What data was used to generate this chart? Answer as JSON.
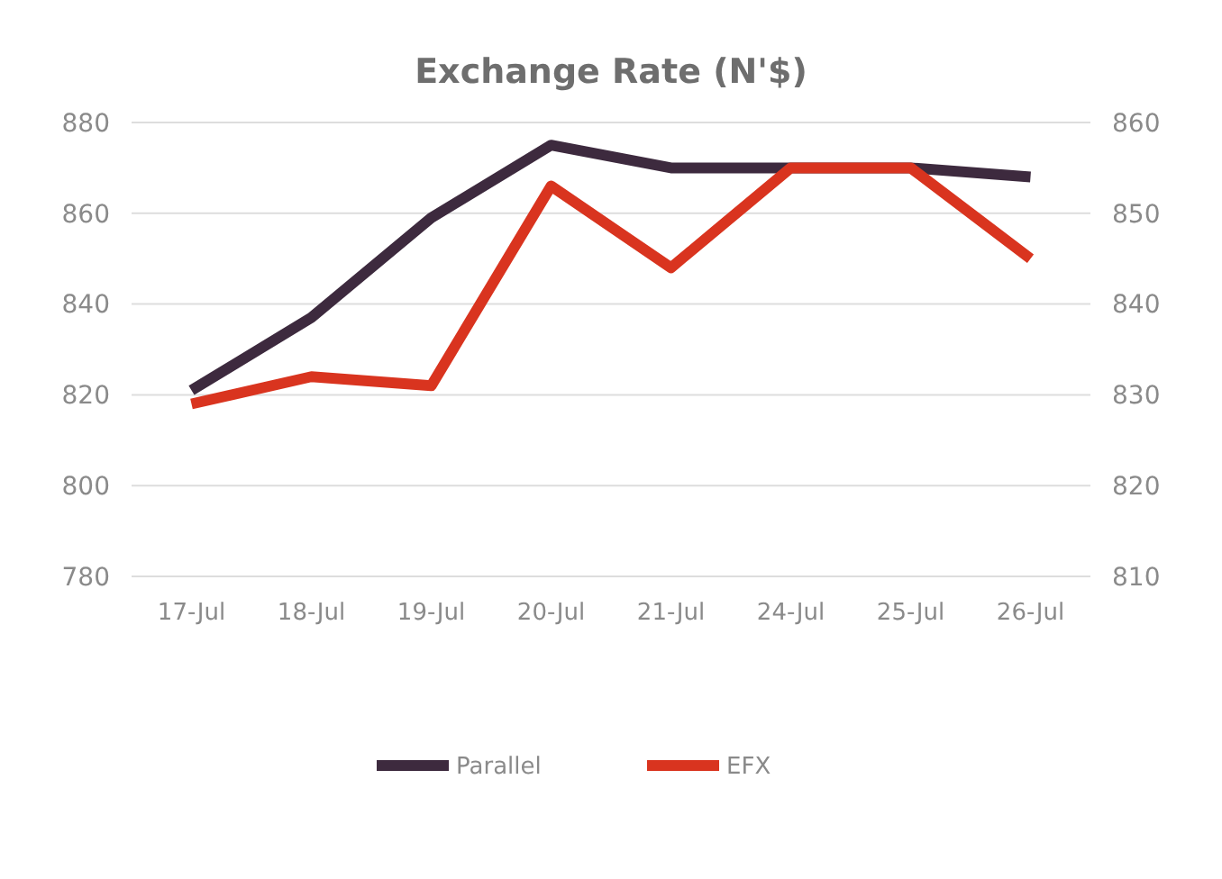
{
  "chart_data": {
    "type": "line",
    "title": "Exchange Rate (N'$)",
    "categories": [
      "17-Jul",
      "18-Jul",
      "19-Jul",
      "20-Jul",
      "21-Jul",
      "24-Jul",
      "25-Jul",
      "26-Jul"
    ],
    "series": [
      {
        "name": "Parallel",
        "color": "#3d2a3e",
        "values": [
          821,
          837,
          859,
          875,
          870,
          870,
          870,
          868
        ]
      },
      {
        "name": "EFX",
        "color": "#d9341f",
        "axis": "y2",
        "values": [
          829,
          832,
          831,
          853,
          844,
          855,
          855,
          845
        ]
      }
    ],
    "ylim": [
      780,
      880
    ],
    "yticks": [
      780,
      800,
      820,
      840,
      860,
      880
    ],
    "y2lim": [
      810,
      860
    ],
    "y2ticks": [
      810,
      820,
      830,
      840,
      850,
      860
    ],
    "grid": "y",
    "legend": "bottom",
    "marker": "none",
    "line_style": "solid"
  }
}
